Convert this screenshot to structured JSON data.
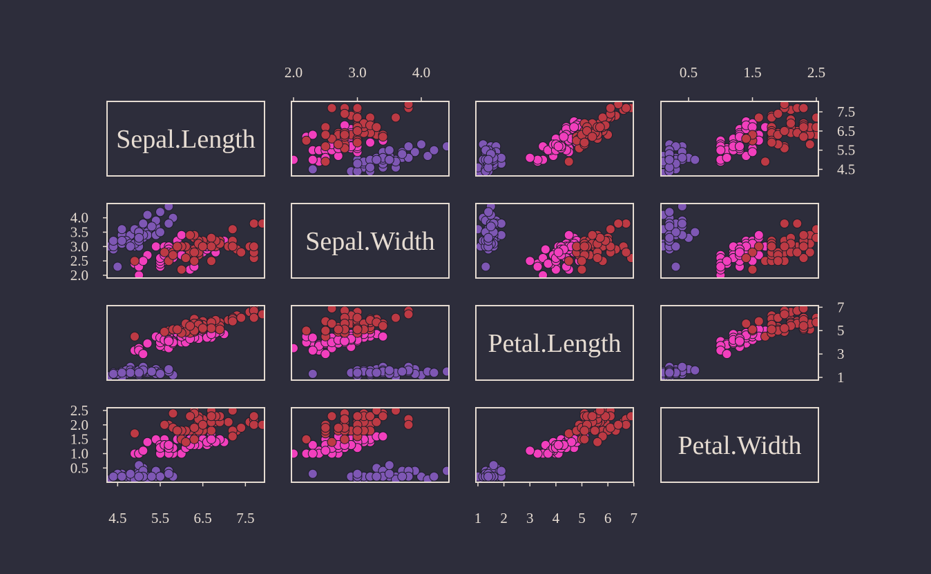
{
  "theme": {
    "background": "#2d2d3b",
    "frame": "#e6dcd2",
    "text": "#e6dcd2",
    "point_outline": "#1e1e2a"
  },
  "chart_data": {
    "type": "scatter",
    "title": "",
    "variables": [
      "Sepal.Length",
      "Sepal.Width",
      "Petal.Length",
      "Petal.Width"
    ],
    "ranges": {
      "Sepal.Length": [
        4.3,
        7.9
      ],
      "Sepal.Width": [
        2.0,
        4.4
      ],
      "Petal.Length": [
        1.0,
        6.9
      ],
      "Petal.Width": [
        0.1,
        2.5
      ]
    },
    "ticks": {
      "Sepal.Length": [
        "4.5",
        "5.5",
        "6.5",
        "7.5"
      ],
      "Sepal.Width": [
        "2.0",
        "2.5",
        "3.0",
        "3.5",
        "4.0"
      ],
      "Sepal.Width.top": [
        "2.0",
        "3.0",
        "4.0"
      ],
      "Petal.Length": [
        "1",
        "3",
        "5",
        "7"
      ],
      "Petal.Length.bottom": [
        "1",
        "2",
        "3",
        "4",
        "5",
        "6",
        "7"
      ],
      "Petal.Width": [
        "0.5",
        "1.0",
        "1.5",
        "2.0",
        "2.5"
      ],
      "Petal.Width.top": [
        "0.5",
        "1.5",
        "2.5"
      ]
    },
    "axes": {
      "bottom": [
        {
          "col": 0,
          "ticks": [
            "4.5",
            "5.5",
            "6.5",
            "7.5"
          ]
        },
        {
          "col": 2,
          "ticks": [
            "1",
            "2",
            "3",
            "4",
            "5",
            "6",
            "7"
          ]
        }
      ],
      "top": [
        {
          "col": 1,
          "ticks": [
            "2.0",
            "3.0",
            "4.0"
          ]
        },
        {
          "col": 3,
          "ticks": [
            "0.5",
            "1.5",
            "2.5"
          ]
        }
      ],
      "left": [
        {
          "row": 1,
          "ticks": [
            "2.0",
            "2.5",
            "3.0",
            "3.5",
            "4.0"
          ]
        },
        {
          "row": 3,
          "ticks": [
            "0.5",
            "1.0",
            "1.5",
            "2.0",
            "2.5"
          ]
        }
      ],
      "right": [
        {
          "row": 0,
          "ticks": [
            "4.5",
            "5.5",
            "6.5",
            "7.5"
          ]
        },
        {
          "row": 2,
          "ticks": [
            "1",
            "3",
            "5",
            "7"
          ]
        }
      ]
    },
    "grid": false,
    "legend": "none",
    "series": [
      {
        "color": "#7e57b4",
        "points": [
          [
            5.1,
            3.5,
            1.4,
            0.2
          ],
          [
            4.9,
            3.0,
            1.4,
            0.2
          ],
          [
            4.7,
            3.2,
            1.3,
            0.2
          ],
          [
            4.6,
            3.1,
            1.5,
            0.2
          ],
          [
            5.0,
            3.6,
            1.4,
            0.2
          ],
          [
            5.4,
            3.9,
            1.7,
            0.4
          ],
          [
            4.6,
            3.4,
            1.4,
            0.3
          ],
          [
            5.0,
            3.4,
            1.5,
            0.2
          ],
          [
            4.4,
            2.9,
            1.4,
            0.2
          ],
          [
            4.9,
            3.1,
            1.5,
            0.1
          ],
          [
            5.4,
            3.7,
            1.5,
            0.2
          ],
          [
            4.8,
            3.4,
            1.6,
            0.2
          ],
          [
            4.8,
            3.0,
            1.4,
            0.1
          ],
          [
            4.3,
            3.0,
            1.1,
            0.1
          ],
          [
            5.8,
            4.0,
            1.2,
            0.2
          ],
          [
            5.7,
            4.4,
            1.5,
            0.4
          ],
          [
            5.4,
            3.9,
            1.3,
            0.4
          ],
          [
            5.1,
            3.5,
            1.4,
            0.3
          ],
          [
            5.7,
            3.8,
            1.7,
            0.3
          ],
          [
            5.1,
            3.8,
            1.5,
            0.3
          ],
          [
            5.4,
            3.4,
            1.7,
            0.2
          ],
          [
            5.1,
            3.7,
            1.5,
            0.4
          ],
          [
            4.6,
            3.6,
            1.0,
            0.2
          ],
          [
            5.1,
            3.3,
            1.7,
            0.5
          ],
          [
            4.8,
            3.4,
            1.9,
            0.2
          ],
          [
            5.0,
            3.0,
            1.6,
            0.2
          ],
          [
            5.0,
            3.4,
            1.6,
            0.4
          ],
          [
            5.2,
            3.5,
            1.5,
            0.2
          ],
          [
            5.2,
            3.4,
            1.4,
            0.2
          ],
          [
            4.7,
            3.2,
            1.6,
            0.2
          ],
          [
            4.8,
            3.1,
            1.6,
            0.2
          ],
          [
            5.4,
            3.4,
            1.5,
            0.4
          ],
          [
            5.2,
            4.1,
            1.5,
            0.1
          ],
          [
            5.5,
            4.2,
            1.4,
            0.2
          ],
          [
            4.9,
            3.1,
            1.5,
            0.2
          ],
          [
            5.0,
            3.2,
            1.2,
            0.2
          ],
          [
            5.5,
            3.5,
            1.3,
            0.2
          ],
          [
            4.9,
            3.6,
            1.4,
            0.1
          ],
          [
            4.4,
            3.0,
            1.3,
            0.2
          ],
          [
            5.1,
            3.4,
            1.5,
            0.2
          ],
          [
            5.0,
            3.5,
            1.3,
            0.3
          ],
          [
            4.5,
            2.3,
            1.3,
            0.3
          ],
          [
            4.4,
            3.2,
            1.3,
            0.2
          ],
          [
            5.0,
            3.5,
            1.6,
            0.6
          ],
          [
            5.1,
            3.8,
            1.9,
            0.4
          ],
          [
            4.8,
            3.0,
            1.4,
            0.3
          ],
          [
            5.1,
            3.8,
            1.6,
            0.2
          ],
          [
            4.6,
            3.2,
            1.4,
            0.2
          ],
          [
            5.3,
            3.7,
            1.5,
            0.2
          ],
          [
            5.0,
            3.3,
            1.4,
            0.2
          ]
        ]
      },
      {
        "color": "#f23fbd",
        "points": [
          [
            7.0,
            3.2,
            4.7,
            1.4
          ],
          [
            6.4,
            3.2,
            4.5,
            1.5
          ],
          [
            6.9,
            3.1,
            4.9,
            1.5
          ],
          [
            5.5,
            2.3,
            4.0,
            1.3
          ],
          [
            6.5,
            2.8,
            4.6,
            1.5
          ],
          [
            5.7,
            2.8,
            4.5,
            1.3
          ],
          [
            6.3,
            3.3,
            4.7,
            1.6
          ],
          [
            4.9,
            2.4,
            3.3,
            1.0
          ],
          [
            6.6,
            2.9,
            4.6,
            1.3
          ],
          [
            5.2,
            2.7,
            3.9,
            1.4
          ],
          [
            5.0,
            2.0,
            3.5,
            1.0
          ],
          [
            5.9,
            3.0,
            4.2,
            1.5
          ],
          [
            6.0,
            2.2,
            4.0,
            1.0
          ],
          [
            6.1,
            2.9,
            4.7,
            1.4
          ],
          [
            5.6,
            2.9,
            3.6,
            1.3
          ],
          [
            6.7,
            3.1,
            4.4,
            1.4
          ],
          [
            5.6,
            3.0,
            4.5,
            1.5
          ],
          [
            5.8,
            2.7,
            4.1,
            1.0
          ],
          [
            6.2,
            2.2,
            4.5,
            1.5
          ],
          [
            5.6,
            2.5,
            3.9,
            1.1
          ],
          [
            5.9,
            3.2,
            4.8,
            1.8
          ],
          [
            6.1,
            2.8,
            4.0,
            1.3
          ],
          [
            6.3,
            2.5,
            4.9,
            1.5
          ],
          [
            6.1,
            2.8,
            4.7,
            1.2
          ],
          [
            6.4,
            2.9,
            4.3,
            1.3
          ],
          [
            6.6,
            3.0,
            4.4,
            1.4
          ],
          [
            6.8,
            2.8,
            4.8,
            1.4
          ],
          [
            6.7,
            3.0,
            5.0,
            1.7
          ],
          [
            6.0,
            2.9,
            4.5,
            1.5
          ],
          [
            5.7,
            2.6,
            3.5,
            1.0
          ],
          [
            5.5,
            2.4,
            3.8,
            1.1
          ],
          [
            5.5,
            2.4,
            3.7,
            1.0
          ],
          [
            5.8,
            2.7,
            3.9,
            1.2
          ],
          [
            6.0,
            2.7,
            5.1,
            1.6
          ],
          [
            5.4,
            3.0,
            4.5,
            1.5
          ],
          [
            6.0,
            3.4,
            4.5,
            1.6
          ],
          [
            6.7,
            3.1,
            4.7,
            1.5
          ],
          [
            6.3,
            2.3,
            4.4,
            1.3
          ],
          [
            5.6,
            3.0,
            4.1,
            1.3
          ],
          [
            5.5,
            2.5,
            4.0,
            1.3
          ],
          [
            5.5,
            2.6,
            4.4,
            1.2
          ],
          [
            6.1,
            3.0,
            4.6,
            1.4
          ],
          [
            5.8,
            2.6,
            4.0,
            1.2
          ],
          [
            5.0,
            2.3,
            3.3,
            1.0
          ],
          [
            5.6,
            2.7,
            4.2,
            1.3
          ],
          [
            5.7,
            3.0,
            4.2,
            1.2
          ],
          [
            5.7,
            2.9,
            4.2,
            1.3
          ],
          [
            6.2,
            2.9,
            4.3,
            1.3
          ],
          [
            5.1,
            2.5,
            3.0,
            1.1
          ],
          [
            5.7,
            2.8,
            4.1,
            1.3
          ]
        ]
      },
      {
        "color": "#bd3a44",
        "points": [
          [
            6.3,
            3.3,
            6.0,
            2.5
          ],
          [
            5.8,
            2.7,
            5.1,
            1.9
          ],
          [
            7.1,
            3.0,
            5.9,
            2.1
          ],
          [
            6.3,
            2.9,
            5.6,
            1.8
          ],
          [
            6.5,
            3.0,
            5.8,
            2.2
          ],
          [
            7.6,
            3.0,
            6.6,
            2.1
          ],
          [
            4.9,
            2.5,
            4.5,
            1.7
          ],
          [
            7.3,
            2.9,
            6.3,
            1.8
          ],
          [
            6.7,
            2.5,
            5.8,
            1.8
          ],
          [
            7.2,
            3.6,
            6.1,
            2.5
          ],
          [
            6.5,
            3.2,
            5.1,
            2.0
          ],
          [
            6.4,
            2.7,
            5.3,
            1.9
          ],
          [
            6.8,
            3.0,
            5.5,
            2.1
          ],
          [
            5.7,
            2.5,
            5.0,
            2.0
          ],
          [
            5.8,
            2.8,
            5.1,
            2.4
          ],
          [
            6.4,
            3.2,
            5.3,
            2.3
          ],
          [
            6.5,
            3.0,
            5.5,
            1.8
          ],
          [
            7.7,
            3.8,
            6.7,
            2.2
          ],
          [
            7.7,
            2.6,
            6.9,
            2.3
          ],
          [
            6.0,
            2.2,
            5.0,
            1.5
          ],
          [
            6.9,
            3.2,
            5.7,
            2.3
          ],
          [
            5.6,
            2.8,
            4.9,
            2.0
          ],
          [
            7.7,
            2.8,
            6.7,
            2.0
          ],
          [
            6.3,
            2.7,
            4.9,
            1.8
          ],
          [
            6.7,
            3.3,
            5.7,
            2.1
          ],
          [
            7.2,
            3.2,
            6.0,
            1.8
          ],
          [
            6.2,
            2.8,
            4.8,
            1.8
          ],
          [
            6.1,
            3.0,
            4.9,
            1.8
          ],
          [
            6.4,
            2.8,
            5.6,
            2.1
          ],
          [
            7.2,
            3.0,
            5.8,
            1.6
          ],
          [
            7.4,
            2.8,
            6.1,
            1.9
          ],
          [
            7.9,
            3.8,
            6.4,
            2.0
          ],
          [
            6.4,
            2.8,
            5.6,
            2.2
          ],
          [
            6.3,
            2.8,
            5.1,
            1.5
          ],
          [
            6.1,
            2.6,
            5.6,
            1.4
          ],
          [
            7.7,
            3.0,
            6.1,
            2.3
          ],
          [
            6.3,
            3.4,
            5.6,
            2.4
          ],
          [
            6.4,
            3.1,
            5.5,
            1.8
          ],
          [
            6.0,
            3.0,
            4.8,
            1.8
          ],
          [
            6.9,
            3.1,
            5.4,
            2.1
          ],
          [
            6.7,
            3.1,
            5.6,
            2.4
          ],
          [
            6.9,
            3.1,
            5.1,
            2.3
          ],
          [
            5.8,
            2.7,
            5.1,
            1.9
          ],
          [
            6.8,
            3.2,
            5.9,
            2.3
          ],
          [
            6.7,
            3.3,
            5.7,
            2.5
          ],
          [
            6.7,
            3.0,
            5.2,
            2.3
          ],
          [
            6.3,
            2.5,
            5.0,
            1.9
          ],
          [
            6.5,
            3.0,
            5.2,
            2.0
          ],
          [
            6.2,
            3.4,
            5.4,
            2.3
          ],
          [
            5.9,
            3.0,
            5.1,
            1.8
          ]
        ]
      }
    ]
  }
}
